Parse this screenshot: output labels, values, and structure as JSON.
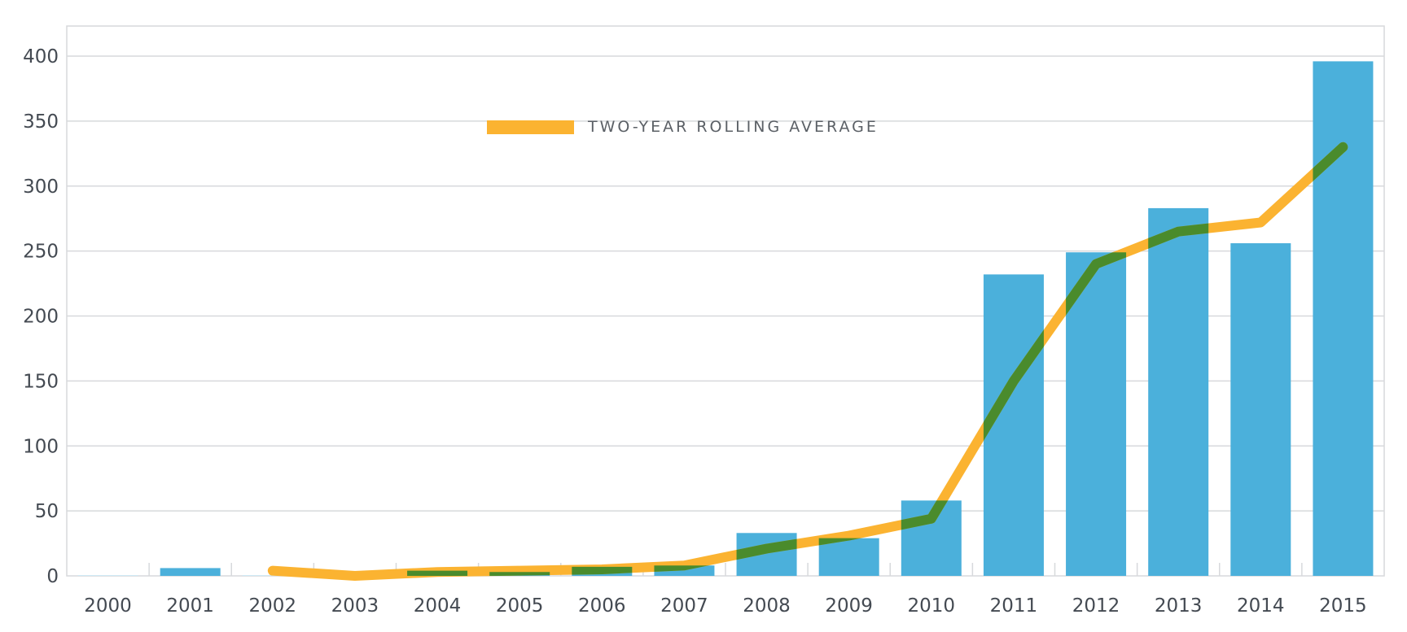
{
  "chart_data": {
    "type": "bar",
    "title": "",
    "xlabel": "",
    "ylabel": "",
    "categories": [
      "2000",
      "2001",
      "2002",
      "2003",
      "2004",
      "2005",
      "2006",
      "2007",
      "2008",
      "2009",
      "2010",
      "2011",
      "2012",
      "2013",
      "2014",
      "2015"
    ],
    "series": [
      {
        "type": "bar",
        "values": [
          0,
          6,
          0,
          0,
          4,
          3,
          7,
          8,
          33,
          29,
          58,
          232,
          249,
          283,
          256,
          396
        ],
        "color": "#4bb0db"
      },
      {
        "name": "TWO-YEAR ROLLING AVERAGE",
        "type": "line",
        "values": [
          null,
          null,
          4,
          0,
          3,
          4,
          5,
          8,
          21,
          31,
          44,
          150,
          240,
          265,
          272,
          330
        ],
        "color": "#fbb331"
      }
    ],
    "yticks": [
      0,
      50,
      100,
      150,
      200,
      250,
      300,
      350,
      400
    ],
    "ylim": [
      0,
      400
    ],
    "grid": true,
    "legend": {
      "position": "top-center",
      "label": "TWO-YEAR ROLLING AVERAGE",
      "color": "#fbb331"
    },
    "overlap_color": "#4a8b2c"
  }
}
